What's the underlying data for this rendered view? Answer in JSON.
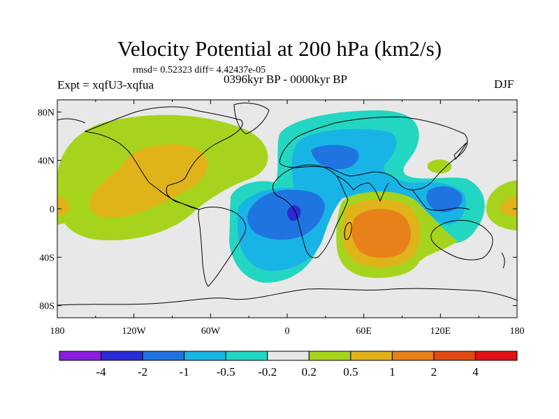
{
  "chart_data": {
    "type": "heatmap",
    "title": "Velocity Potential at 200 hPa (km2/s)",
    "subtitle_stats": "rmsd= 0.52323 diff= 4.42437e-05",
    "left_label": "Expt = xqfU3-xqfua",
    "center_label": "0396kyr BP - 0000kyr BP",
    "right_label": "DJF",
    "projection": "cylindrical equidistant",
    "lon_range": [
      -180,
      180
    ],
    "lat_range": [
      -90,
      90
    ],
    "x_ticks": [
      {
        "value": -180,
        "label": "180"
      },
      {
        "value": -120,
        "label": "120W"
      },
      {
        "value": -60,
        "label": "60W"
      },
      {
        "value": 0,
        "label": "0"
      },
      {
        "value": 60,
        "label": "60E"
      },
      {
        "value": 120,
        "label": "120E"
      },
      {
        "value": 180,
        "label": "180"
      }
    ],
    "y_ticks": [
      {
        "value": 80,
        "label": "80N"
      },
      {
        "value": 40,
        "label": "40N"
      },
      {
        "value": 0,
        "label": "0"
      },
      {
        "value": -40,
        "label": "40S"
      },
      {
        "value": -80,
        "label": "80S"
      }
    ],
    "colorbar": {
      "levels": [
        "-4",
        "-2",
        "-1",
        "-0.5",
        "-0.2",
        "0.2",
        "0.5",
        "1",
        "2",
        "4"
      ],
      "colors": [
        "#8a1ee0",
        "#2b2bd6",
        "#1f74e0",
        "#19b4e6",
        "#23d6c2",
        "#e8e8e8",
        "#a6d41e",
        "#e0b31a",
        "#e8811a",
        "#e04a14",
        "#e01414"
      ]
    },
    "features": [
      {
        "name": "positive center North America / North Atlantic",
        "lon": -95,
        "lat": 20,
        "value": 0.8
      },
      {
        "name": "positive center South Indian Ocean",
        "lon": 63,
        "lat": -22,
        "value": 1.4
      },
      {
        "name": "negative center tropical Atlantic / Africa",
        "lon": 5,
        "lat": -5,
        "value": -1.3
      },
      {
        "name": "negative center Maritime Continent",
        "lon": 122,
        "lat": 3,
        "value": -0.9
      },
      {
        "name": "negative center Eurasia",
        "lon": 45,
        "lat": 45,
        "value": -0.7
      },
      {
        "name": "positive center central Pacific",
        "lon": -175,
        "lat": 2,
        "value": 0.6
      }
    ]
  }
}
